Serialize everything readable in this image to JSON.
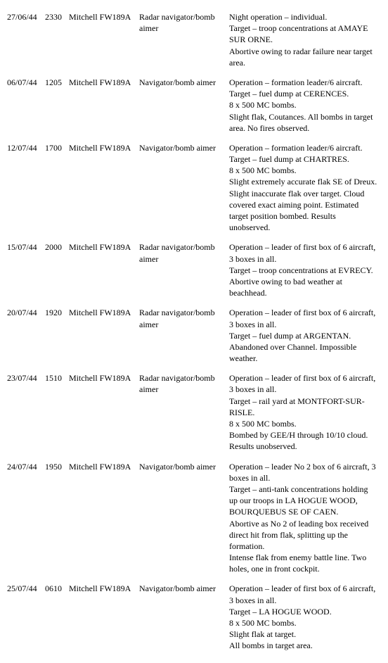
{
  "entries": [
    {
      "date": "27/06/44",
      "time": "2330",
      "aircraft": "Mitchell FW189A",
      "role": "Radar navigator/bomb aimer",
      "notes": [
        "Night operation – individual.",
        "Target – troop concentrations at AMAYE SUR ORNE.",
        "Abortive owing to radar failure near target area."
      ]
    },
    {
      "date": "06/07/44",
      "time": "1205",
      "aircraft": "Mitchell FW189A",
      "role": "Navigator/bomb aimer",
      "notes": [
        "Operation – formation leader/6 aircraft.",
        "Target – fuel dump at CERENCES.",
        "8 x 500 MC bombs.",
        "Slight flak, Coutances. All bombs in target area. No fires observed."
      ]
    },
    {
      "date": "12/07/44",
      "time": "1700",
      "aircraft": "Mitchell FW189A",
      "role": "Navigator/bomb aimer",
      "notes": [
        "Operation – formation leader/6 aircraft.",
        "Target – fuel dump at CHARTRES.",
        "8 x 500 MC bombs.",
        "Slight extremely accurate flak SE of Dreux. Slight inaccurate flak over target. Cloud covered exact aiming point. Estimated target position bombed. Results unobserved."
      ]
    },
    {
      "date": "15/07/44",
      "time": "2000",
      "aircraft": "Mitchell FW189A",
      "role": "Radar navigator/bomb aimer",
      "notes": [
        "Operation – leader of first box of 6 aircraft, 3 boxes in all.",
        "Target – troop concentrations at EVRECY.",
        "Abortive owing to bad weather at beachhead."
      ]
    },
    {
      "date": "20/07/44",
      "time": "1920",
      "aircraft": "Mitchell FW189A",
      "role": "Radar navigator/bomb aimer",
      "notes": [
        "Operation – leader of first box of 6 aircraft, 3 boxes in all.",
        "Target – fuel dump at ARGENTAN.",
        "Abandoned over Channel. Impossible weather."
      ]
    },
    {
      "date": "23/07/44",
      "time": "1510",
      "aircraft": "Mitchell FW189A",
      "role": "Radar navigator/bomb aimer",
      "notes": [
        "Operation – leader of first box of 6 aircraft, 3 boxes in all.",
        "Target – rail yard at MONTFORT-SUR-RISLE.",
        "8 x 500 MC bombs.",
        "Bombed by GEE/H through 10/10 cloud. Results unobserved."
      ]
    },
    {
      "date": "24/07/44",
      "time": "1950",
      "aircraft": "Mitchell FW189A",
      "role": "Navigator/bomb aimer",
      "notes": [
        "Operation – leader No 2 box of 6 aircraft, 3 boxes in all.",
        "Target – anti-tank concentrations holding up our troops in LA HOGUE WOOD, BOURQUEBUS SE OF CAEN.",
        "Abortive as No 2 of leading box received direct hit from flak, splitting up the formation.",
        "Intense flak from enemy battle line. Two holes, one in front cockpit."
      ]
    },
    {
      "date": "25/07/44",
      "time": "0610",
      "aircraft": "Mitchell FW189A",
      "role": "Navigator/bomb aimer",
      "notes": [
        "Operation – leader of first box of 6 aircraft, 3 boxes in all.",
        "Target – LA HOGUE WOOD.",
        "8 x 500 MC bombs.",
        "Slight flak at target.",
        "All bombs in target area."
      ]
    }
  ]
}
